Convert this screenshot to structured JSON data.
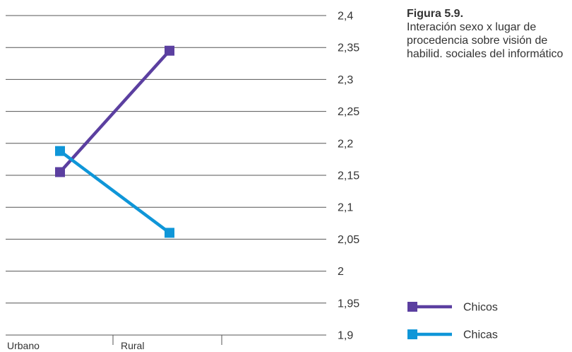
{
  "figure": {
    "label": "Figura 5.9.",
    "title": "Interación sexo x lugar de procedencia sobre visión de habilid. sociales del informático"
  },
  "chart_data": {
    "type": "line",
    "title": "",
    "xlabel": "",
    "ylabel": "",
    "categories": [
      "Urbano",
      "Rural"
    ],
    "y_ticks": [
      "1,9",
      "1,95",
      "2",
      "2,05",
      "2,1",
      "2,15",
      "2,2",
      "2,25",
      "2,3",
      "2,35",
      "2,4"
    ],
    "ylim": [
      1.9,
      2.4
    ],
    "grid": true,
    "legend_position": "bottom-right",
    "series": [
      {
        "name": "Chicos",
        "values": [
          2.155,
          2.345
        ],
        "color": "#5b3fa0"
      },
      {
        "name": "Chicas",
        "values": [
          2.188,
          2.06
        ],
        "color": "#0f96d8"
      }
    ],
    "colors": {
      "grid": "#555555",
      "axis_text": "#333333"
    }
  }
}
